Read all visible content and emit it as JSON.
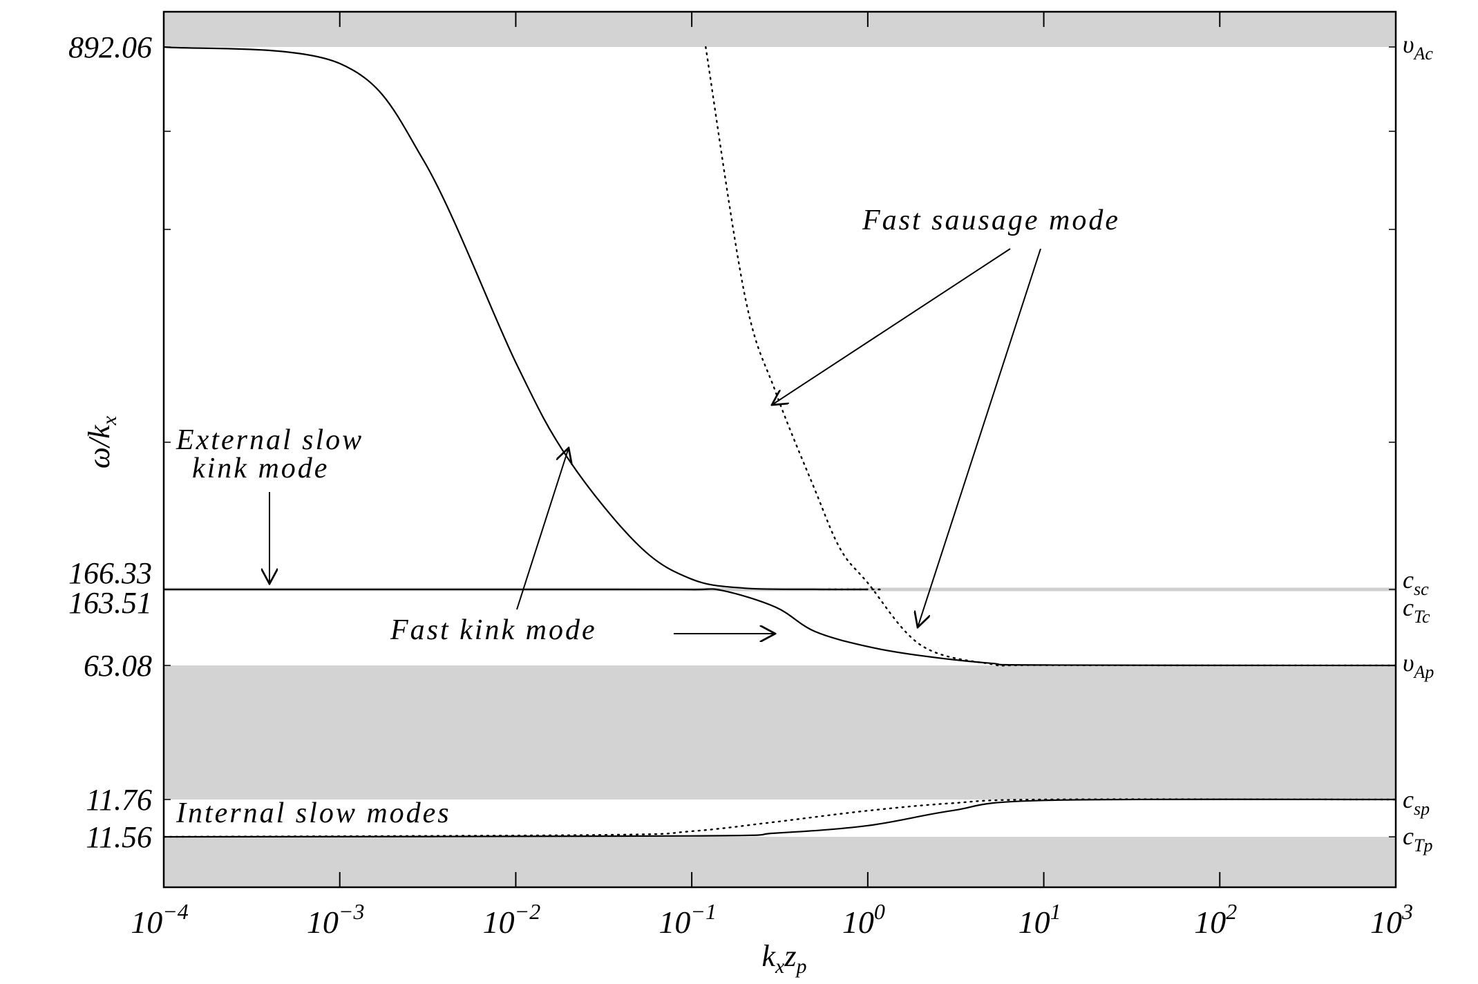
{
  "chart_data": {
    "type": "line",
    "xlabel": "k_x z_p",
    "ylabel": "ω/k_x",
    "x_scale": "log",
    "xlim": [
      0.0001,
      1000
    ],
    "x_ticks": [
      {
        "value": 0.0001,
        "base": "10",
        "exp": "−4"
      },
      {
        "value": 0.001,
        "base": "10",
        "exp": "−3"
      },
      {
        "value": 0.01,
        "base": "10",
        "exp": "−2"
      },
      {
        "value": 0.1,
        "base": "10",
        "exp": "−1"
      },
      {
        "value": 1,
        "base": "10",
        "exp": "0"
      },
      {
        "value": 10,
        "base": "10",
        "exp": "1"
      },
      {
        "value": 100,
        "base": "10",
        "exp": "2"
      },
      {
        "value": 1000,
        "base": "10",
        "exp": "3"
      }
    ],
    "y_levels": [
      {
        "value": 892.06,
        "label": "892.06",
        "right": "υ",
        "right_sub": "Ac"
      },
      {
        "value": 166.33,
        "label": "166.33",
        "right": "c",
        "right_sub": "sc"
      },
      {
        "value": 163.51,
        "label": "163.51",
        "right": "c",
        "right_sub": "Tc"
      },
      {
        "value": 63.08,
        "label": "63.08",
        "right": "υ",
        "right_sub": "Ap"
      },
      {
        "value": 11.76,
        "label": "11.76",
        "right": "c",
        "right_sub": "sp"
      },
      {
        "value": 11.56,
        "label": "11.56",
        "right": "c",
        "right_sub": "Tp"
      }
    ],
    "shaded_bands": [
      {
        "from": 892.06,
        "to": "top"
      },
      {
        "from": 11.76,
        "to": 63.08
      },
      {
        "from": "bottom",
        "to": 11.56
      }
    ],
    "series": [
      {
        "style": "solid",
        "points": [
          [
            0.0001,
            892.06
          ],
          [
            0.001,
            870
          ],
          [
            0.003,
            740
          ],
          [
            0.01,
            470
          ],
          [
            0.02,
            340
          ],
          [
            0.05,
            225
          ],
          [
            0.1,
            180
          ],
          [
            0.2,
            168
          ],
          [
            0.5,
            166.4
          ],
          [
            1,
            166.33
          ]
        ]
      },
      {
        "style": "solid",
        "points": [
          [
            0.0001,
            165.5
          ],
          [
            0.03,
            165.3
          ],
          [
            0.1,
            163.3
          ],
          [
            0.15,
            162
          ],
          [
            0.3,
            140
          ],
          [
            0.5,
            108
          ],
          [
            1,
            88
          ],
          [
            2,
            76
          ],
          [
            5,
            66
          ],
          [
            10,
            63.6
          ],
          [
            1000,
            63.08
          ]
        ]
      },
      {
        "style": "dotted",
        "points": [
          [
            0.12,
            892.06
          ],
          [
            0.2,
            560
          ],
          [
            0.3,
            430
          ],
          [
            0.5,
            300
          ],
          [
            0.7,
            220
          ],
          [
            1,
            175
          ],
          [
            2,
            90
          ],
          [
            5,
            65
          ],
          [
            10,
            63.4
          ],
          [
            1000,
            63.08
          ]
        ]
      },
      {
        "style": "dotted",
        "points": [
          [
            0.6,
            166.4
          ],
          [
            1.2,
            166.33
          ]
        ]
      },
      {
        "style": "solid",
        "points": [
          [
            0.0001,
            11.56
          ],
          [
            0.1,
            11.565
          ],
          [
            0.3,
            11.58
          ],
          [
            1,
            11.62
          ],
          [
            3,
            11.7
          ],
          [
            10,
            11.755
          ],
          [
            1000,
            11.76
          ]
        ]
      },
      {
        "style": "dotted",
        "points": [
          [
            0.0001,
            11.56
          ],
          [
            0.03,
            11.57
          ],
          [
            0.1,
            11.59
          ],
          [
            0.3,
            11.64
          ],
          [
            1,
            11.7
          ],
          [
            3,
            11.74
          ],
          [
            10,
            11.76
          ],
          [
            1000,
            11.76
          ]
        ]
      }
    ],
    "annotations": [
      {
        "lines": [
          "External slow",
          "kink mode"
        ]
      },
      {
        "lines": [
          "Fast sausage mode"
        ]
      },
      {
        "lines": [
          "Fast kink mode"
        ]
      },
      {
        "lines": [
          "Internal slow modes"
        ]
      }
    ]
  }
}
